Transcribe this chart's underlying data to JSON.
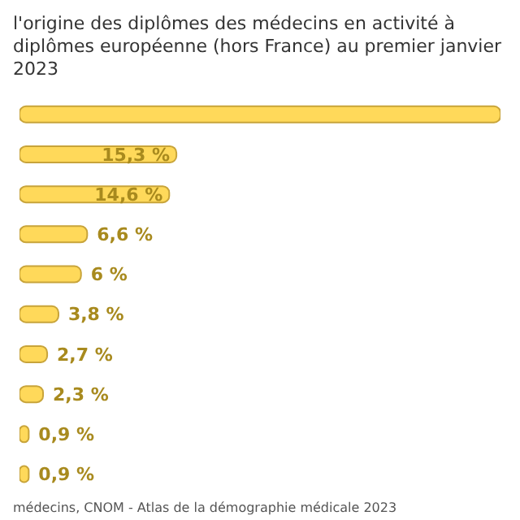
{
  "chart_data": {
    "type": "bar",
    "orientation": "horizontal",
    "title": "l'origine des diplômes des médecins en activité à diplômes européenne (hors France) au premier janvier 2023",
    "categories": [
      null,
      null,
      null,
      null,
      null,
      null,
      null,
      null,
      null,
      null
    ],
    "values": [
      46.9,
      15.3,
      14.6,
      6.6,
      6,
      3.8,
      2.7,
      2.3,
      0.9,
      0.9
    ],
    "value_labels": [
      null,
      "15,3 %",
      "14,6 %",
      "6,6 %",
      "6 %",
      "3,8 %",
      "2,7 %",
      "2,3 %",
      "0,9 %",
      "0,9 %"
    ],
    "color": "#ffd95a",
    "tick_labels": false,
    "annotations": [
      "médecins, CNOM - Atlas de la démographie médicale 2023"
    ]
  }
}
